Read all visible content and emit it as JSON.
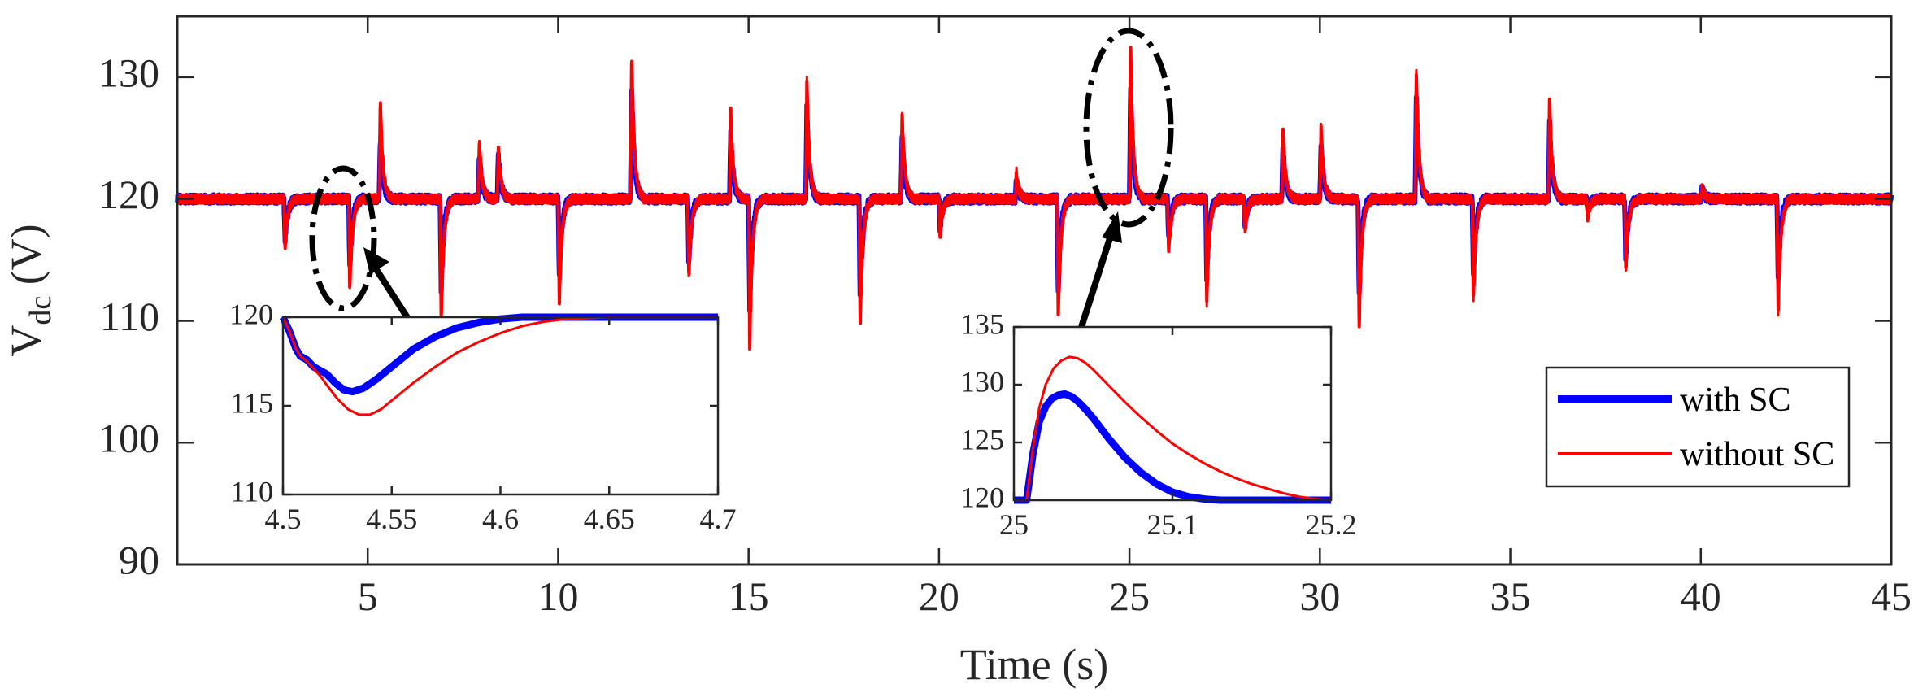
{
  "chart_data": [
    {
      "id": "main",
      "type": "line",
      "title": "",
      "xlabel": "Time (s)",
      "ylabel_main": "V",
      "ylabel_sub": "dc",
      "ylabel_unit": " (V)",
      "xlim": [
        0,
        45
      ],
      "ylim": [
        90,
        135
      ],
      "xticks": [
        5,
        10,
        15,
        20,
        25,
        30,
        35,
        40,
        45
      ],
      "yticks": [
        90,
        100,
        110,
        120,
        130
      ],
      "xtick_labels": [
        "5",
        "10",
        "15",
        "20",
        "25",
        "30",
        "35",
        "40",
        "45"
      ],
      "ytick_labels": [
        "90",
        "100",
        "110",
        "120",
        "130"
      ],
      "grid": false,
      "legend_position": "right",
      "nominal_voltage": 120,
      "series": [
        {
          "name": "with SC",
          "color": "#0000ff",
          "events": [
            [
              2.8,
              116.5
            ],
            [
              4.5,
              114.2
            ],
            [
              5.3,
              125
            ],
            [
              6.9,
              112.5
            ],
            [
              7.9,
              123.8
            ],
            [
              8.4,
              123.6
            ],
            [
              10.0,
              113.5
            ],
            [
              11.9,
              129.5
            ],
            [
              13.4,
              114.5
            ],
            [
              14.5,
              125.5
            ],
            [
              15.0,
              111.0
            ],
            [
              16.5,
              127.5
            ],
            [
              17.9,
              111.5
            ],
            [
              19.0,
              125.5
            ],
            [
              20.0,
              117.5
            ],
            [
              22.0,
              121.5
            ],
            [
              23.1,
              112.5
            ],
            [
              25.0,
              129.2
            ],
            [
              26.0,
              116.5
            ],
            [
              27.0,
              113.5
            ],
            [
              28.0,
              117.8
            ],
            [
              29.0,
              124.5
            ],
            [
              30.0,
              124.5
            ],
            [
              31.0,
              112.0
            ],
            [
              32.5,
              128.5
            ],
            [
              34.0,
              113.5
            ],
            [
              36.0,
              126.5
            ],
            [
              37.0,
              119.0
            ],
            [
              38.0,
              115.0
            ],
            [
              40.0,
              120.8
            ],
            [
              42.0,
              113.5
            ]
          ]
        },
        {
          "name": "without SC",
          "color": "#ff0000",
          "events": [
            [
              2.8,
              116.0
            ],
            [
              4.5,
              112.5
            ],
            [
              5.3,
              128.2
            ],
            [
              6.9,
              110.2
            ],
            [
              7.9,
              124.8
            ],
            [
              8.4,
              124.2
            ],
            [
              10.0,
              111.5
            ],
            [
              11.9,
              132.0
            ],
            [
              13.4,
              113.5
            ],
            [
              14.5,
              127.5
            ],
            [
              15.0,
              108.0
            ],
            [
              16.5,
              129.8
            ],
            [
              17.9,
              109.5
            ],
            [
              19.0,
              127.2
            ],
            [
              20.0,
              117.0
            ],
            [
              22.0,
              122.3
            ],
            [
              23.1,
              110.5
            ],
            [
              25.0,
              132.5
            ],
            [
              26.0,
              115.5
            ],
            [
              27.0,
              111.5
            ],
            [
              28.0,
              117.2
            ],
            [
              29.0,
              125.8
            ],
            [
              30.0,
              126.0
            ],
            [
              31.0,
              109.5
            ],
            [
              32.5,
              130.7
            ],
            [
              34.0,
              111.5
            ],
            [
              36.0,
              128.3
            ],
            [
              37.0,
              118.5
            ],
            [
              38.0,
              114.0
            ],
            [
              40.0,
              121.0
            ],
            [
              42.0,
              110.5
            ]
          ]
        }
      ]
    },
    {
      "id": "inset-left",
      "type": "line",
      "xlim": [
        4.5,
        4.7
      ],
      "ylim": [
        110,
        120
      ],
      "xticks": [
        4.5,
        4.55,
        4.6,
        4.65,
        4.7
      ],
      "yticks": [
        110,
        115,
        120
      ],
      "xtick_labels": [
        "4.5",
        "4.55",
        "4.6",
        "4.65",
        "4.7"
      ],
      "ytick_labels": [
        "110",
        "115",
        "120"
      ],
      "series": [
        {
          "name": "with SC",
          "color": "#0000ff",
          "x": [
            4.5,
            4.503,
            4.506,
            4.508,
            4.511,
            4.514,
            4.517,
            4.52,
            4.524,
            4.528,
            4.532,
            4.537,
            4.543,
            4.55,
            4.56,
            4.57,
            4.58,
            4.59,
            4.6,
            4.61,
            4.62,
            4.63,
            4.64,
            4.65,
            4.66,
            4.67,
            4.68,
            4.69,
            4.7
          ],
          "y": [
            120,
            119.2,
            118.2,
            117.8,
            117.6,
            117.2,
            117.0,
            116.8,
            116.3,
            115.9,
            115.8,
            116.0,
            116.5,
            117.2,
            118.2,
            118.9,
            119.4,
            119.7,
            119.9,
            120.0,
            120.0,
            120.0,
            120.0,
            120.0,
            120.0,
            120.0,
            120.0,
            120.0,
            120.0
          ]
        },
        {
          "name": "without SC",
          "color": "#ff0000",
          "x": [
            4.5,
            4.503,
            4.506,
            4.508,
            4.511,
            4.514,
            4.517,
            4.52,
            4.525,
            4.53,
            4.535,
            4.54,
            4.545,
            4.55,
            4.56,
            4.57,
            4.58,
            4.59,
            4.6,
            4.61,
            4.62,
            4.63,
            4.64,
            4.65,
            4.66,
            4.67,
            4.68,
            4.69,
            4.7
          ],
          "y": [
            120,
            119.2,
            118.2,
            117.8,
            117.5,
            117.1,
            116.7,
            116.2,
            115.4,
            114.8,
            114.5,
            114.5,
            114.8,
            115.3,
            116.3,
            117.2,
            118.0,
            118.6,
            119.1,
            119.5,
            119.75,
            119.9,
            119.95,
            120.0,
            120.0,
            120.0,
            120.0,
            120.0,
            120.0
          ]
        }
      ]
    },
    {
      "id": "inset-right",
      "type": "line",
      "xlim": [
        25.0,
        25.2
      ],
      "ylim": [
        120,
        135
      ],
      "xticks": [
        25,
        25.1,
        25.2
      ],
      "yticks": [
        120,
        125,
        130,
        135
      ],
      "xtick_labels": [
        "25",
        "25.1",
        "25.2"
      ],
      "ytick_labels": [
        "120",
        "125",
        "130",
        "135"
      ],
      "series": [
        {
          "name": "with SC",
          "color": "#0000ff",
          "x": [
            25.0,
            25.008,
            25.012,
            25.016,
            25.02,
            25.024,
            25.028,
            25.032,
            25.036,
            25.04,
            25.045,
            25.05,
            25.06,
            25.07,
            25.08,
            25.09,
            25.1,
            25.11,
            25.12,
            25.13
          ],
          "y": [
            120,
            120,
            124.0,
            126.8,
            128.1,
            128.8,
            129.1,
            129.2,
            129.0,
            128.6,
            127.9,
            127.1,
            125.3,
            123.7,
            122.4,
            121.4,
            120.7,
            120.3,
            120.1,
            120.0
          ]
        },
        {
          "name": "without SC",
          "color": "#ff0000",
          "x": [
            25.0,
            25.008,
            25.012,
            25.016,
            25.02,
            25.025,
            25.03,
            25.035,
            25.04,
            25.045,
            25.05,
            25.06,
            25.07,
            25.08,
            25.09,
            25.1,
            25.11,
            25.12,
            25.13,
            25.14,
            25.15,
            25.16,
            25.17,
            25.18,
            25.19,
            25.2
          ],
          "y": [
            120,
            120,
            124.5,
            128.0,
            130.0,
            131.4,
            132.1,
            132.4,
            132.3,
            131.9,
            131.3,
            129.9,
            128.5,
            127.2,
            126.0,
            124.9,
            124.0,
            123.2,
            122.5,
            121.9,
            121.4,
            121.0,
            120.6,
            120.3,
            120.1,
            120.0
          ]
        }
      ]
    }
  ]
}
